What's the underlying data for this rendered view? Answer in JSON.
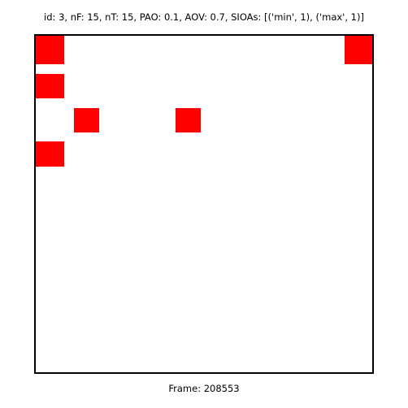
{
  "header": {
    "text": "id: 3, nF: 15, nT: 15, PAO: 0.1, AOV: 0.7, SIOAs: [('min', 1), ('max', 1)]"
  },
  "board": {
    "cell_color": "#ff0000",
    "background_color": "#ffffff",
    "border_color": "#000000",
    "cells": [
      {
        "name": "red-cell-1"
      },
      {
        "name": "red-cell-2"
      },
      {
        "name": "red-cell-3"
      },
      {
        "name": "red-cell-4"
      },
      {
        "name": "red-cell-5"
      },
      {
        "name": "red-cell-6"
      }
    ]
  },
  "footer": {
    "text": "Frame: 208553"
  }
}
